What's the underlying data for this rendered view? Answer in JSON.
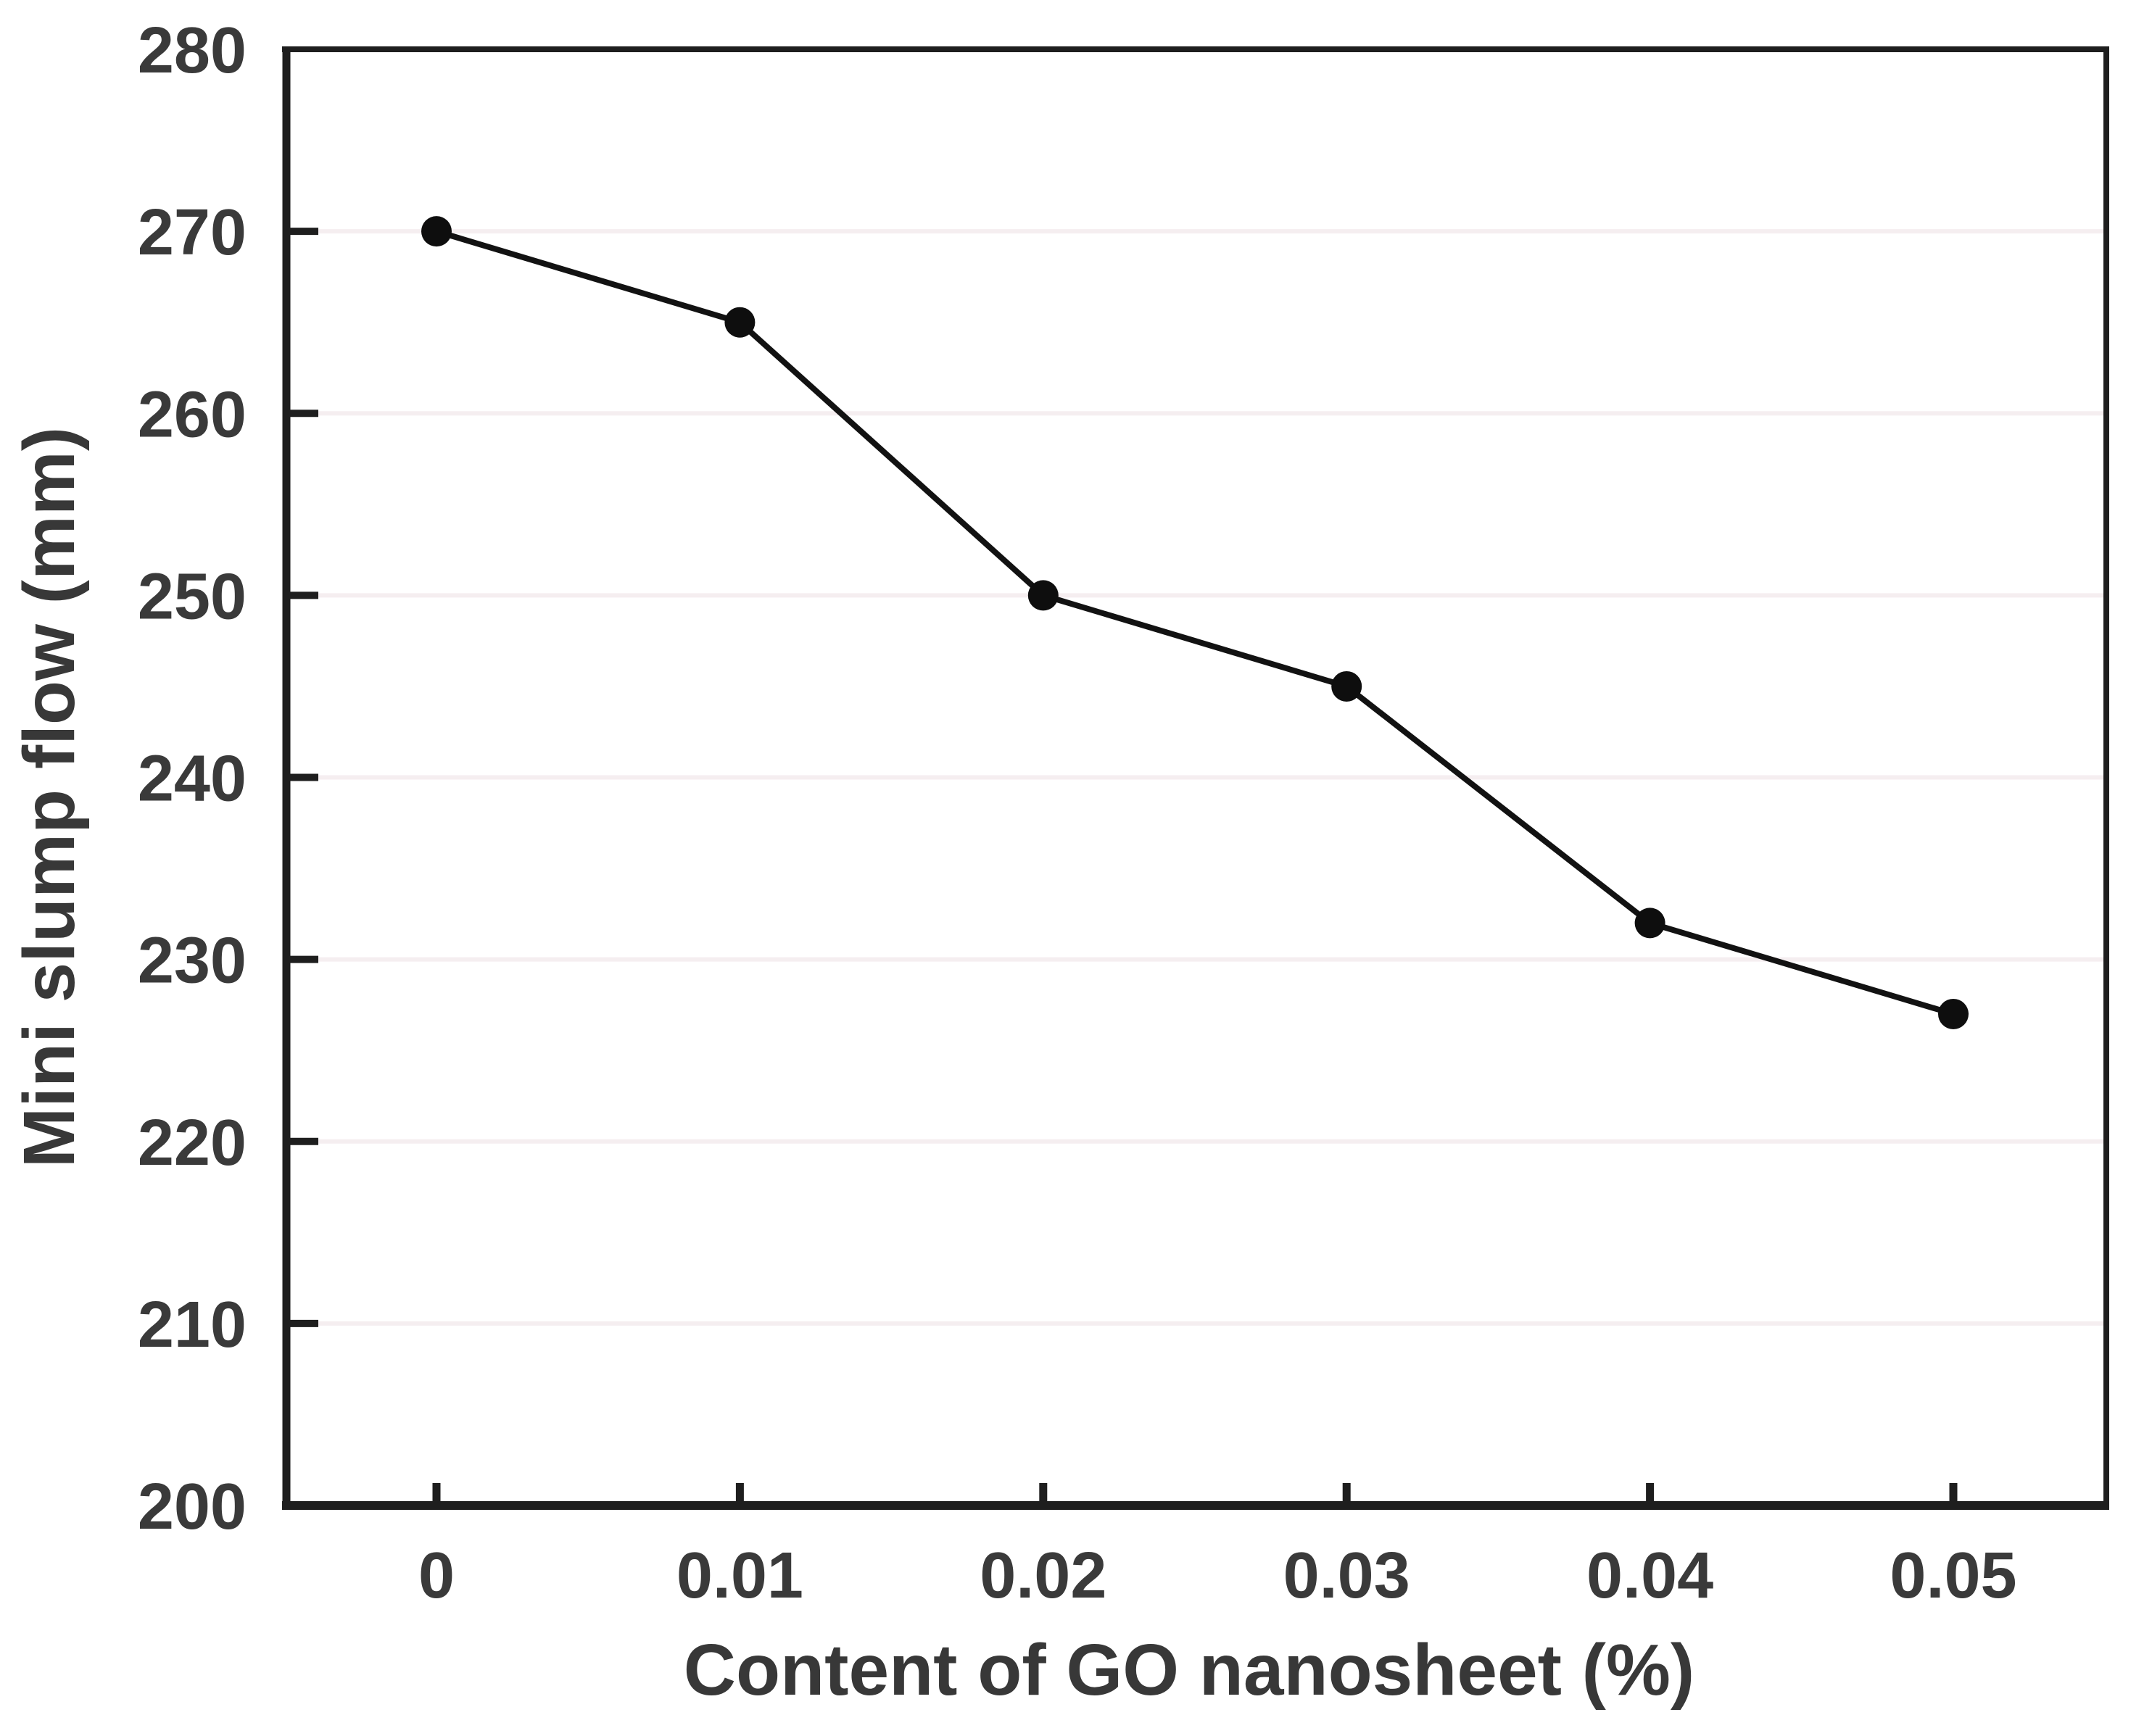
{
  "chart_data": {
    "type": "line",
    "title": "",
    "categories": [
      "0",
      "0.01",
      "0.02",
      "0.03",
      "0.04",
      "0.05"
    ],
    "x_numeric": [
      0,
      0.01,
      0.02,
      0.03,
      0.04,
      0.05
    ],
    "series": [
      {
        "name": "Mini slump flow",
        "values": [
          270,
          265,
          250,
          245,
          232,
          227
        ]
      }
    ],
    "xlabel": "Content of GO nanosheet（%）",
    "ylabel": "Mini slump flow（mm）",
    "ylim": [
      200,
      280
    ],
    "y_ticks": [
      280,
      270,
      260,
      250,
      240,
      230,
      220,
      210,
      200
    ],
    "y_tick_step": 10,
    "grid": "faint horizontal gridlines at each interior y tick (210-270)",
    "legend_position": "none",
    "marker": "filled-circle",
    "line_style": "solid",
    "colors": {
      "line": "#121212",
      "marker": "#0e0e0e",
      "axis": "#1e1e1e",
      "grid": "#f5eef0",
      "text": "#3a3a3a",
      "background": "#ffffff"
    }
  }
}
